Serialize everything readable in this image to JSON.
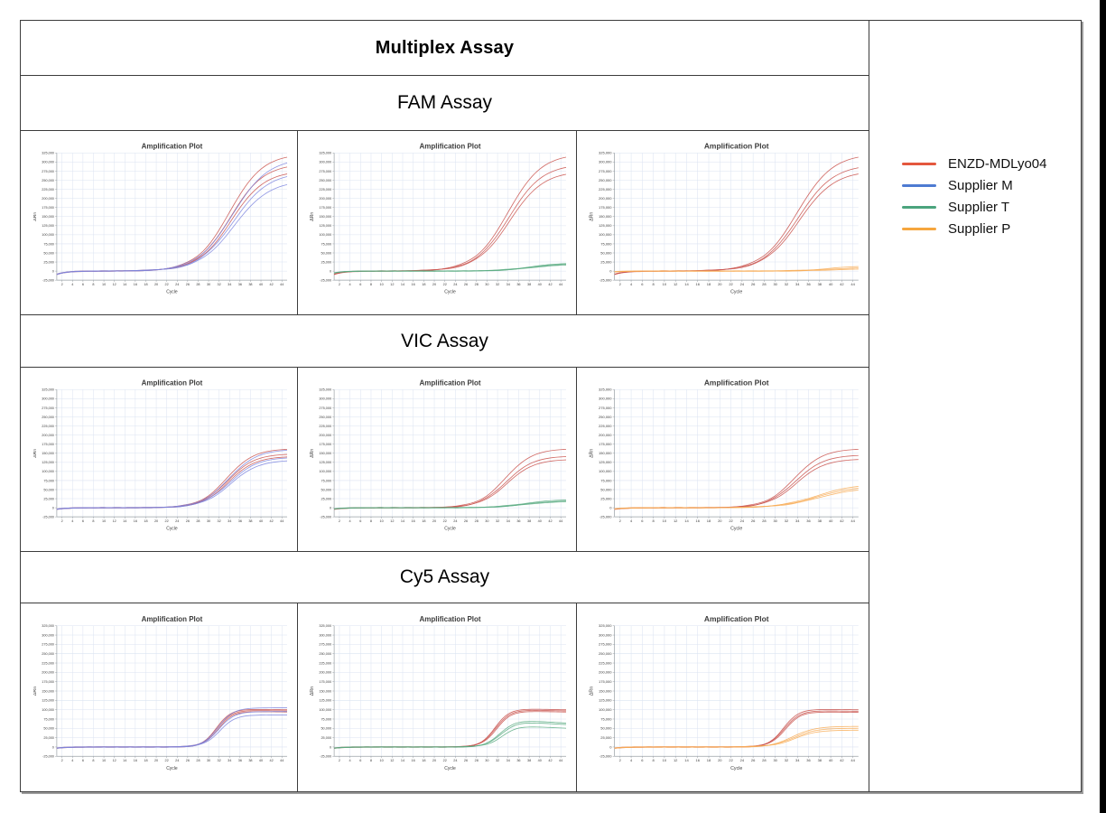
{
  "table": {
    "title": "Multiplex Assay",
    "sections": [
      {
        "label": "FAM Assay"
      },
      {
        "label": "VIC Assay"
      },
      {
        "label": "Cy5 Assay"
      }
    ]
  },
  "legend": {
    "items": [
      {
        "label": "ENZD-MDLyo04",
        "color": "#e4573d"
      },
      {
        "label": "Supplier M",
        "color": "#4e7bd2"
      },
      {
        "label": "Supplier T",
        "color": "#4ba47d"
      },
      {
        "label": "Supplier P",
        "color": "#f6a63e"
      }
    ]
  },
  "chart_data": {
    "type": "line",
    "shared": {
      "title": "Amplification Plot",
      "xlabel": "Cycle",
      "ylabel": "ΔRn",
      "x_range": [
        1,
        45
      ],
      "x_ticks": [
        2,
        4,
        6,
        8,
        10,
        12,
        14,
        16,
        18,
        20,
        22,
        24,
        26,
        28,
        30,
        32,
        34,
        36,
        38,
        40,
        42,
        44
      ],
      "y_range": [
        -25000,
        325000
      ],
      "y_ticks": [
        -25000,
        0,
        25000,
        50000,
        75000,
        100000,
        125000,
        150000,
        175000,
        200000,
        225000,
        250000,
        275000,
        300000,
        325000
      ],
      "grid": true,
      "grid_color": "#dbe3f1",
      "axis_color": "#9aa0a6"
    },
    "plots": [
      {
        "id": "FAM-1",
        "section": "FAM Assay",
        "title": "Amplification Plot",
        "series": [
          {
            "name": "ENZD-MDLyo04",
            "color": "#c9504a",
            "final_drn": [
              310000,
              283000,
              264000
            ],
            "midpoint": 34,
            "slope": 3.2,
            "dip": -9000
          },
          {
            "name": "Supplier M",
            "color": "#7b84de",
            "final_drn": [
              293000,
              256000,
              234000
            ],
            "midpoint": 34.6,
            "slope": 3.4,
            "dip": -9000
          }
        ]
      },
      {
        "id": "FAM-2",
        "section": "FAM Assay",
        "title": "Amplification Plot",
        "series": [
          {
            "name": "ENZD-MDLyo04",
            "color": "#c9504a",
            "final_drn": [
              310000,
              282000,
              263000
            ],
            "midpoint": 34,
            "slope": 3.2,
            "dip": -9000
          },
          {
            "name": "Supplier T",
            "color": "#58aa80",
            "final_drn": [
              20000,
              18000,
              16000
            ],
            "midpoint": 38,
            "slope": 3,
            "dip": -5000
          }
        ]
      },
      {
        "id": "FAM-3",
        "section": "FAM Assay",
        "title": "Amplification Plot",
        "series": [
          {
            "name": "ENZD-MDLyo04",
            "color": "#c9504a",
            "final_drn": [
              310000,
              281000,
              264000
            ],
            "midpoint": 34,
            "slope": 3.2,
            "dip": -9000
          },
          {
            "name": "Supplier P",
            "color": "#f8ab55",
            "final_drn": [
              12000,
              8000,
              5000
            ],
            "midpoint": 40,
            "slope": 3,
            "dip": -2000
          }
        ]
      },
      {
        "id": "VIC-1",
        "section": "VIC Assay",
        "title": "Amplification Plot",
        "series": [
          {
            "name": "ENZD-MDLyo04",
            "color": "#c9504a",
            "final_drn": [
              160000,
              146000,
              139000
            ],
            "midpoint": 33.5,
            "slope": 2.6,
            "dip": -4000
          },
          {
            "name": "Supplier M",
            "color": "#7b84de",
            "final_drn": [
              157000,
              136000,
              128000
            ],
            "midpoint": 33.9,
            "slope": 2.7,
            "dip": -4000
          }
        ]
      },
      {
        "id": "VIC-2",
        "section": "VIC Assay",
        "title": "Amplification Plot",
        "series": [
          {
            "name": "ENZD-MDLyo04",
            "color": "#c9504a",
            "final_drn": [
              160000,
              140000,
              131000
            ],
            "midpoint": 33.5,
            "slope": 2.6,
            "dip": -4000
          },
          {
            "name": "Supplier T",
            "color": "#58aa80",
            "final_drn": [
              21000,
              18000,
              16000
            ],
            "midpoint": 37,
            "slope": 3,
            "dip": -3000
          }
        ]
      },
      {
        "id": "VIC-3",
        "section": "VIC Assay",
        "title": "Amplification Plot",
        "series": [
          {
            "name": "ENZD-MDLyo04",
            "color": "#c9504a",
            "final_drn": [
              160000,
              143000,
              132000
            ],
            "midpoint": 33.5,
            "slope": 2.6,
            "dip": -4000
          },
          {
            "name": "Supplier P",
            "color": "#f8ab55",
            "final_drn": [
              57000,
              52000,
              47000
            ],
            "midpoint": 37.5,
            "slope": 3.5,
            "dip": -3000
          }
        ]
      },
      {
        "id": "CY5-1",
        "section": "Cy5 Assay",
        "title": "Amplification Plot",
        "series": [
          {
            "name": "ENZD-MDLyo04",
            "color": "#c9504a",
            "final_drn": [
              100000,
              97000,
              94000
            ],
            "midpoint": 31.5,
            "slope": 1.4,
            "dip": -3000,
            "hook": 0.02
          },
          {
            "name": "Supplier M",
            "color": "#7b84de",
            "final_drn": [
              105000,
              95000,
              86000
            ],
            "midpoint": 31.8,
            "slope": 1.5,
            "dip": -3000
          }
        ]
      },
      {
        "id": "CY5-2",
        "section": "Cy5 Assay",
        "title": "Amplification Plot",
        "series": [
          {
            "name": "ENZD-MDLyo04",
            "color": "#c9504a",
            "final_drn": [
              100000,
              97000,
              94000
            ],
            "midpoint": 31.5,
            "slope": 1.4,
            "dip": -3000,
            "hook": 0.03
          },
          {
            "name": "Supplier T",
            "color": "#58aa80",
            "final_drn": [
              65000,
              61000,
              51000
            ],
            "midpoint": 32.5,
            "slope": 1.5,
            "dip": -3000,
            "hook": 0.12
          }
        ]
      },
      {
        "id": "CY5-3",
        "section": "Cy5 Assay",
        "title": "Amplification Plot",
        "series": [
          {
            "name": "ENZD-MDLyo04",
            "color": "#c9504a",
            "final_drn": [
              100000,
              96000,
              93000
            ],
            "midpoint": 31.5,
            "slope": 1.4,
            "dip": -3000,
            "hook": 0.02
          },
          {
            "name": "Supplier P",
            "color": "#f8ab55",
            "final_drn": [
              55000,
              50000,
              45000
            ],
            "midpoint": 33.2,
            "slope": 2.0,
            "dip": -3000
          }
        ]
      }
    ]
  }
}
